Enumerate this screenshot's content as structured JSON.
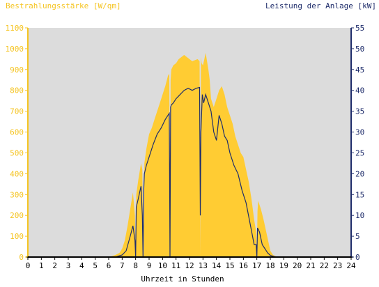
{
  "chart_data": {
    "type": "area",
    "left_axis_title": "Bestrahlungsstärke [W/qm]",
    "right_axis_title": "Leistung der Anlage [kW]",
    "xlabel": "Uhrzeit in Stunden",
    "xlim": [
      0,
      24
    ],
    "ylim_left": [
      0,
      1100
    ],
    "ylim_right": [
      0,
      55
    ],
    "x_ticks": [
      "0",
      "1",
      "2",
      "3",
      "4",
      "5",
      "6",
      "7",
      "8",
      "9",
      "10",
      "11",
      "12",
      "13",
      "14",
      "15",
      "16",
      "17",
      "18",
      "19",
      "20",
      "21",
      "22",
      "23",
      "24"
    ],
    "y_ticks_left": [
      "0",
      "100",
      "200",
      "300",
      "400",
      "500",
      "600",
      "700",
      "800",
      "900",
      "1000",
      "1100"
    ],
    "y_ticks_right": [
      "0",
      "5",
      "10",
      "15",
      "20",
      "25",
      "30",
      "35",
      "40",
      "45",
      "50",
      "55"
    ],
    "grid": false,
    "colors": {
      "irradiance": "#ffcc33",
      "power": "#1f2d6b",
      "plot_bg": "#dcdcdc",
      "left_axis_text": "#f5c421",
      "right_axis_text": "#1f2d6b"
    },
    "series": [
      {
        "name": "Bestrahlungsstärke [W/qm]",
        "axis": "left",
        "style": "area",
        "x": [
          0,
          6.0,
          6.5,
          6.8,
          7.0,
          7.2,
          7.4,
          7.6,
          7.8,
          7.95,
          8.0,
          8.05,
          8.2,
          8.4,
          8.5,
          8.55,
          8.6,
          8.65,
          8.8,
          9.0,
          9.2,
          9.4,
          9.6,
          9.8,
          10.0,
          10.2,
          10.4,
          10.5,
          10.55,
          10.6,
          10.65,
          10.8,
          11.0,
          11.2,
          11.4,
          11.6,
          11.8,
          12.0,
          12.2,
          12.4,
          12.6,
          12.75,
          12.8,
          12.85,
          12.9,
          13.0,
          13.1,
          13.2,
          13.4,
          13.5,
          13.6,
          13.8,
          14.0,
          14.2,
          14.4,
          14.6,
          14.8,
          15.0,
          15.2,
          15.4,
          15.6,
          15.8,
          16.0,
          16.2,
          16.4,
          16.6,
          16.8,
          16.95,
          17.0,
          17.05,
          17.1,
          17.3,
          17.5,
          17.7,
          17.9,
          18.0,
          18.2,
          18.5,
          19.0,
          24
        ],
        "y": [
          0,
          0,
          10,
          20,
          40,
          80,
          150,
          230,
          310,
          200,
          0,
          300,
          370,
          450,
          420,
          60,
          0,
          450,
          520,
          590,
          620,
          660,
          700,
          740,
          780,
          820,
          870,
          880,
          0,
          850,
          900,
          920,
          930,
          950,
          960,
          970,
          960,
          950,
          940,
          945,
          950,
          940,
          0,
          960,
          930,
          920,
          950,
          980,
          900,
          850,
          760,
          720,
          760,
          800,
          820,
          780,
          720,
          680,
          640,
          580,
          540,
          500,
          480,
          420,
          360,
          280,
          180,
          120,
          0,
          220,
          270,
          230,
          180,
          120,
          60,
          30,
          10,
          0,
          0,
          0
        ]
      },
      {
        "name": "Leistung der Anlage [kW]",
        "axis": "right",
        "style": "line",
        "x": [
          0,
          6.5,
          7.0,
          7.3,
          7.6,
          7.8,
          7.95,
          8.0,
          8.05,
          8.2,
          8.4,
          8.5,
          8.55,
          8.6,
          8.65,
          8.8,
          9.0,
          9.3,
          9.6,
          9.9,
          10.2,
          10.5,
          10.55,
          10.6,
          10.65,
          10.8,
          11.0,
          11.3,
          11.6,
          11.9,
          12.2,
          12.5,
          12.75,
          12.8,
          12.85,
          12.95,
          13.05,
          13.2,
          13.4,
          13.6,
          13.8,
          14.0,
          14.2,
          14.4,
          14.6,
          14.8,
          15.0,
          15.3,
          15.6,
          15.9,
          16.2,
          16.5,
          16.8,
          16.95,
          17.0,
          17.05,
          17.2,
          17.4,
          17.6,
          17.8,
          18.0,
          18.3,
          18.6,
          24
        ],
        "y": [
          0,
          0,
          0.5,
          1.5,
          5,
          7.5,
          4,
          0,
          12,
          14,
          17,
          10,
          0,
          16,
          20,
          22,
          24,
          27,
          29.5,
          31,
          33,
          34.5,
          0,
          36,
          36.5,
          37,
          38,
          39,
          40,
          40.5,
          40,
          40.5,
          40.7,
          10,
          30,
          39,
          37,
          39,
          37,
          35,
          30,
          28,
          34,
          32,
          29,
          28,
          25,
          22,
          20,
          16,
          13,
          8,
          3,
          3,
          0,
          7,
          6,
          3,
          2,
          1,
          0.4,
          0.1,
          0,
          0
        ]
      }
    ]
  }
}
